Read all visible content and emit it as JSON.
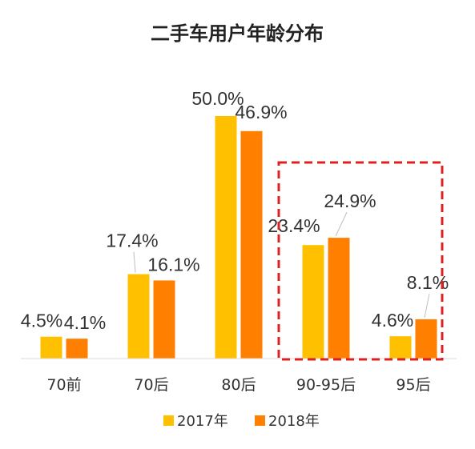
{
  "chart_data": {
    "type": "bar",
    "title": "二手车用户年龄分布",
    "categories": [
      "70前",
      "70后",
      "80后",
      "90-95后",
      "95后"
    ],
    "series": [
      {
        "name": "2017年",
        "color": "#FFC000",
        "values": [
          4.5,
          17.4,
          50.0,
          23.4,
          4.6
        ],
        "labels": [
          "4.5%",
          "17.4%",
          "50.0%",
          "23.4%",
          "4.6%"
        ]
      },
      {
        "name": "2018年",
        "color": "#FF7F00",
        "values": [
          4.1,
          16.1,
          46.9,
          24.9,
          8.1
        ],
        "labels": [
          "4.1%",
          "16.1%",
          "46.9%",
          "24.9%",
          "8.1%"
        ]
      }
    ],
    "xlabel": "",
    "ylabel": "",
    "ylim": [
      0,
      50
    ],
    "grid": false,
    "legend_position": "bottom-center",
    "highlight": {
      "categories": [
        "90-95后",
        "95后"
      ],
      "color": "#E02020",
      "style": "dashed"
    }
  }
}
